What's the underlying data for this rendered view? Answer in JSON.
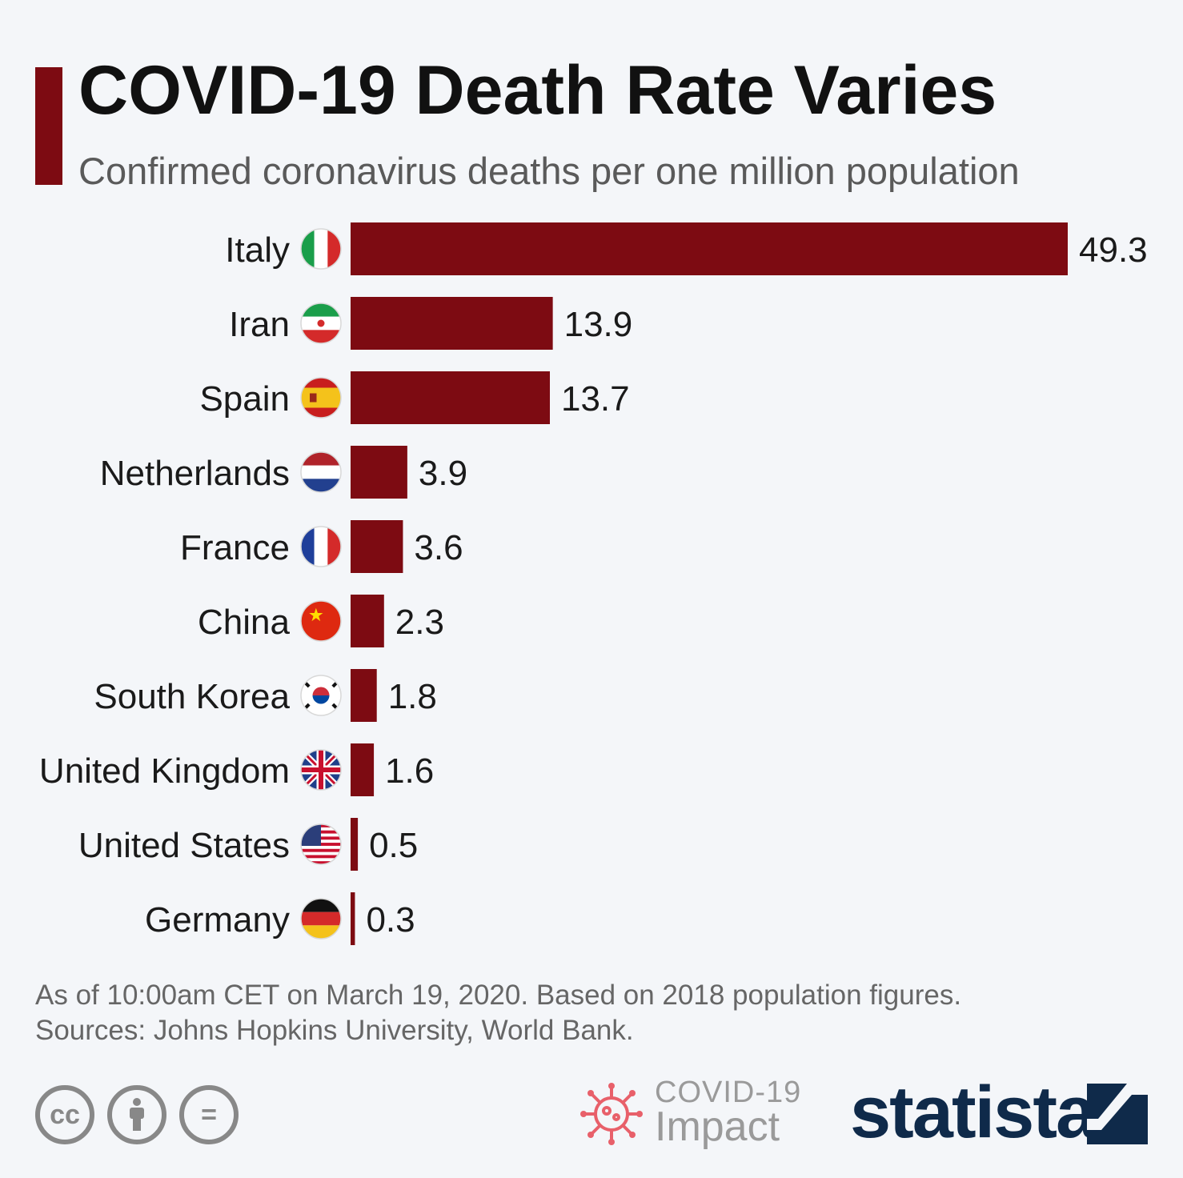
{
  "header": {
    "title": "COVID-19 Death Rate Varies",
    "subtitle": "Confirmed coronavirus deaths per one million population"
  },
  "chart_data": {
    "type": "bar",
    "orientation": "horizontal",
    "title": "COVID-19 Death Rate Varies",
    "subtitle": "Confirmed coronavirus deaths per one million population",
    "categories": [
      "Italy",
      "Iran",
      "Spain",
      "Netherlands",
      "France",
      "China",
      "South Korea",
      "United Kingdom",
      "United States",
      "Germany"
    ],
    "values": [
      49.3,
      13.9,
      13.7,
      3.9,
      3.6,
      2.3,
      1.8,
      1.6,
      0.5,
      0.3
    ],
    "value_labels": [
      "49.3",
      "13.9",
      "13.7",
      "3.9",
      "3.6",
      "2.3",
      "1.8",
      "1.6",
      "0.5",
      "0.3"
    ],
    "flags": [
      "italy-flag-icon",
      "iran-flag-icon",
      "spain-flag-icon",
      "netherlands-flag-icon",
      "france-flag-icon",
      "china-flag-icon",
      "south-korea-flag-icon",
      "united-kingdom-flag-icon",
      "united-states-flag-icon",
      "germany-flag-icon"
    ],
    "xlim": [
      0,
      49.3
    ],
    "bar_color": "#7d0b12",
    "grid": false,
    "legend": "none"
  },
  "footer": {
    "note_line1": "As of 10:00am CET on March 19, 2020. Based on 2018 population figures.",
    "note_line2": "Sources: Johns Hopkins University, World Bank.",
    "cc_label": "cc",
    "equals_label": "=",
    "impact_line1": "COVID-19",
    "impact_line2": "Impact",
    "brand": "statista"
  },
  "colors": {
    "accent": "#7d0b12",
    "background": "#f4f6f9",
    "brand_navy": "#0f2a4a"
  }
}
